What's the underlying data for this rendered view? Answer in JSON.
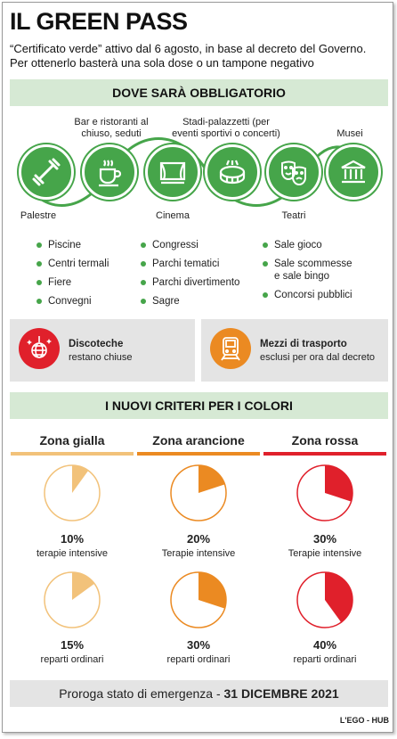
{
  "title": "IL GREEN PASS",
  "subtitle": "“Certificato verde” attivo dal 6 agosto, in base al decreto del Governo. Per ottenerlo basterà una sola dose o un tampone negativo",
  "section1": "DOVE SARÀ OBBLIGATORIO",
  "places": {
    "palestre": "Palestre",
    "bar": "Bar e ristoranti al chiuso, seduti",
    "cinema": "Cinema",
    "stadi": "Stadi-palazzetti (per eventi sportivi o concerti)",
    "teatri": "Teatri",
    "musei": "Musei"
  },
  "list_col1": [
    "Piscine",
    "Centri termali",
    "Fiere",
    "Convegni"
  ],
  "list_col2": [
    "Congressi",
    "Parchi tematici",
    "Parchi divertimento",
    "Sagre"
  ],
  "list_col3": [
    "Sale gioco",
    "Sale scommesse e sale bingo",
    "Concorsi pubblici"
  ],
  "boxes": {
    "discoteche_title": "Discoteche",
    "discoteche_text": "restano chiuse",
    "trasporti_title": "Mezzi di trasporto",
    "trasporti_text": "esclusi per ora dal decreto"
  },
  "section2": "I NUOVI CRITERI PER I COLORI",
  "colors": {
    "green": "#46a54a",
    "yellow": "#f2c27a",
    "orange": "#eb8a22",
    "red": "#e0202b"
  },
  "zones": [
    {
      "name": "Zona gialla",
      "color": "#f2c27a",
      "intensive_pct": 10,
      "intensive_label": "10%",
      "intensive_text": "terapie intensive",
      "ordinary_pct": 15,
      "ordinary_label": "15%",
      "ordinary_text": "reparti ordinari"
    },
    {
      "name": "Zona arancione",
      "color": "#eb8a22",
      "intensive_pct": 20,
      "intensive_label": "20%",
      "intensive_text": "Terapie intensive",
      "ordinary_pct": 30,
      "ordinary_label": "30%",
      "ordinary_text": "reparti ordinari"
    },
    {
      "name": "Zona rossa",
      "color": "#e0202b",
      "intensive_pct": 30,
      "intensive_label": "30%",
      "intensive_text": "Terapie intensive",
      "ordinary_pct": 40,
      "ordinary_label": "40%",
      "ordinary_text": "reparti ordinari"
    }
  ],
  "footer": {
    "text": "Proroga stato di emergenza - ",
    "date": "31 DICEMBRE 2021"
  },
  "credit": "L'EGO - HUB"
}
